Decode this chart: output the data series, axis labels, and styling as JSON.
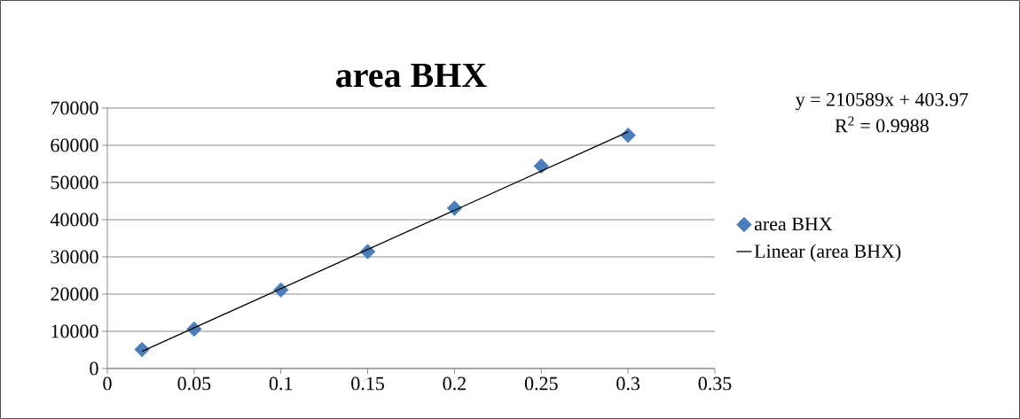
{
  "chart_data": {
    "type": "scatter",
    "title": "area BHX",
    "xlim": [
      0,
      0.35
    ],
    "xticks": [
      0,
      0.05,
      0.1,
      0.15,
      0.2,
      0.25,
      0.3,
      0.35
    ],
    "ylim": [
      0,
      70000
    ],
    "yticks": [
      0,
      10000,
      20000,
      30000,
      40000,
      50000,
      60000,
      70000
    ],
    "grid": "y",
    "legend": "right",
    "series": [
      {
        "name": "area BHX",
        "marker": "diamond",
        "color": "#4a7ebb",
        "x": [
          0.02,
          0.05,
          0.1,
          0.15,
          0.2,
          0.25,
          0.3
        ],
        "values": [
          5100,
          10600,
          21100,
          31400,
          43100,
          54400,
          62700
        ]
      },
      {
        "name": "Linear (area BHX)",
        "type": "line",
        "marker": "none",
        "color": "#000000",
        "x": [
          0.02,
          0.3
        ],
        "values": [
          4600,
          63600
        ]
      }
    ],
    "annotations": [
      "y = 210589x + 403.97",
      "R$^{2}$ = 0.9988"
    ]
  }
}
